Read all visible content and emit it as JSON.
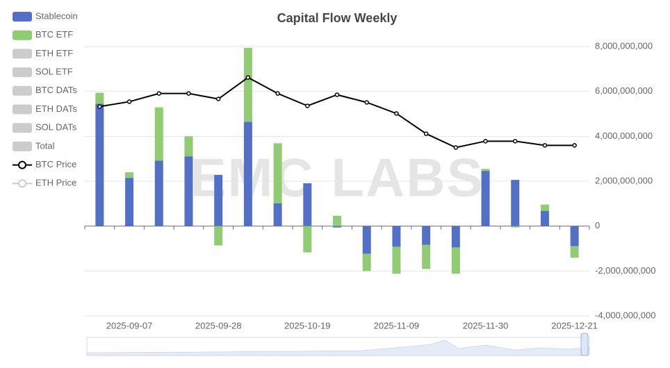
{
  "chart_data": {
    "type": "bar",
    "title": "Capital Flow Weekly",
    "watermark": "EMC LABS",
    "categories": [
      null,
      "2025-09-07",
      null,
      null,
      "2025-09-28",
      null,
      null,
      "2025-10-19",
      null,
      null,
      "2025-11-09",
      null,
      null,
      "2025-11-30",
      null,
      null,
      "2025-12-21"
    ],
    "ylim": [
      -4000000000,
      8000000000
    ],
    "yticks": [
      {
        "value": -4000000000,
        "label": "-4,000,000,000"
      },
      {
        "value": -2000000000,
        "label": "-2,000,000,000"
      },
      0,
      {
        "value": 2000000000,
        "label": "2,000,000,000"
      },
      {
        "value": 4000000000,
        "label": "4,000,000,000"
      },
      {
        "value": 6000000000,
        "label": "6,000,000,000"
      },
      {
        "value": 8000000000,
        "label": "8,000,000,000"
      }
    ],
    "y2lim": [
      -7000,
      141000
    ],
    "grid": true,
    "legend": "left",
    "series": [
      {
        "name": "Stablecoin",
        "type": "bar",
        "color": "#5470c6",
        "values": [
          5450000000,
          2150000000,
          2920000000,
          3110000000,
          2280000000,
          4650000000,
          1020000000,
          1910000000,
          -60000000,
          -1230000000,
          -920000000,
          -830000000,
          -950000000,
          2460000000,
          2060000000,
          680000000,
          -890000000
        ]
      },
      {
        "name": "BTC ETF",
        "type": "bar",
        "color": "#91cc75",
        "values": [
          490000000,
          250000000,
          2370000000,
          890000000,
          -860000000,
          3290000000,
          2670000000,
          -1170000000,
          460000000,
          -770000000,
          -1200000000,
          -1080000000,
          -1170000000,
          90000000,
          -60000000,
          280000000,
          -520000000
        ]
      },
      {
        "name": "ETH ETF",
        "type": "bar",
        "color": "#fac858",
        "hidden": true
      },
      {
        "name": "SOL ETF",
        "type": "bar",
        "color": "#ee6666",
        "hidden": true
      },
      {
        "name": "BTC DATs",
        "type": "bar",
        "color": "#73c0de",
        "hidden": true
      },
      {
        "name": "ETH DATs",
        "type": "bar",
        "color": "#3ba272",
        "hidden": true
      },
      {
        "name": "SOL DATs",
        "type": "bar",
        "color": "#fc8452",
        "hidden": true
      },
      {
        "name": "Total",
        "type": "bar",
        "color": "#9a60b4",
        "hidden": true
      },
      {
        "name": "BTC Price",
        "type": "line",
        "axis": "y2",
        "color": "#000000",
        "values": [
          108000,
          110700,
          115200,
          115200,
          112200,
          124000,
          115200,
          108400,
          114500,
          110300,
          104200,
          93100,
          85500,
          89000,
          89000,
          86700,
          86700
        ]
      },
      {
        "name": "ETH Price",
        "type": "line",
        "axis": "y2",
        "color": "#aaaaaa",
        "hidden": true
      }
    ]
  }
}
